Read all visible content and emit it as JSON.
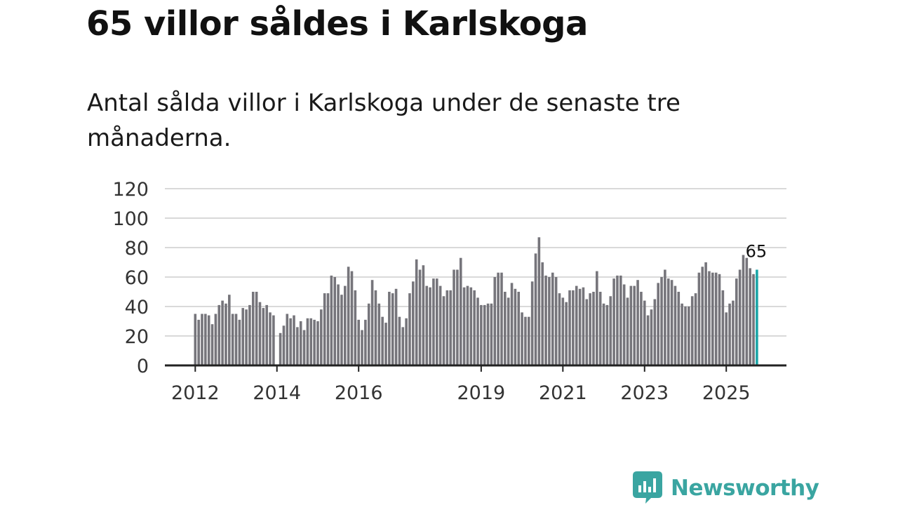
{
  "title": "65 villor såldes i Karlskoga",
  "subtitle": "Antal sålda villor i Karlskoga under de senaste tre månaderna.",
  "brand": {
    "name": "Newsworthy",
    "color": "#3aa5a1"
  },
  "colors": {
    "bar": "#76757b",
    "highlight": "#1aa5a7",
    "grid": "#d9d9d9",
    "axis": "#222222"
  },
  "chart_data": {
    "type": "bar",
    "title": "65 villor såldes i Karlskoga",
    "xlabel": "",
    "ylabel": "",
    "ylim": [
      0,
      120
    ],
    "yticks": [
      0,
      20,
      40,
      60,
      80,
      100,
      120
    ],
    "xticks": [
      {
        "label": "2012",
        "index": 0
      },
      {
        "label": "2014",
        "index": 24
      },
      {
        "label": "2016",
        "index": 48
      },
      {
        "label": "2019",
        "index": 84
      },
      {
        "label": "2021",
        "index": 108
      },
      {
        "label": "2023",
        "index": 132
      },
      {
        "label": "2025",
        "index": 156
      }
    ],
    "start": "2012-01",
    "highlight_index": 165,
    "highlight_label": "65",
    "values": [
      35,
      31,
      35,
      35,
      34,
      28,
      35,
      41,
      44,
      42,
      48,
      35,
      35,
      31,
      39,
      38,
      41,
      50,
      50,
      43,
      39,
      41,
      36,
      34,
      0,
      22,
      27,
      35,
      32,
      34,
      26,
      30,
      24,
      32,
      32,
      31,
      30,
      38,
      49,
      49,
      61,
      60,
      55,
      48,
      54,
      67,
      64,
      51,
      31,
      24,
      31,
      42,
      58,
      51,
      42,
      33,
      29,
      50,
      49,
      52,
      33,
      26,
      32,
      49,
      57,
      72,
      65,
      68,
      54,
      53,
      59,
      59,
      54,
      47,
      51,
      51,
      65,
      65,
      73,
      53,
      54,
      53,
      51,
      46,
      41,
      41,
      42,
      42,
      60,
      63,
      63,
      50,
      46,
      56,
      52,
      50,
      36,
      33,
      33,
      57,
      76,
      87,
      70,
      61,
      60,
      63,
      60,
      49,
      46,
      43,
      51,
      51,
      54,
      52,
      53,
      45,
      49,
      50,
      64,
      50,
      42,
      41,
      47,
      59,
      61,
      61,
      55,
      46,
      54,
      54,
      58,
      50,
      44,
      34,
      38,
      45,
      56,
      60,
      65,
      59,
      58,
      54,
      50,
      42,
      40,
      40,
      47,
      49,
      63,
      67,
      70,
      64,
      63,
      63,
      62,
      51,
      36,
      42,
      44,
      59,
      65,
      75,
      73,
      66,
      62,
      65
    ]
  }
}
